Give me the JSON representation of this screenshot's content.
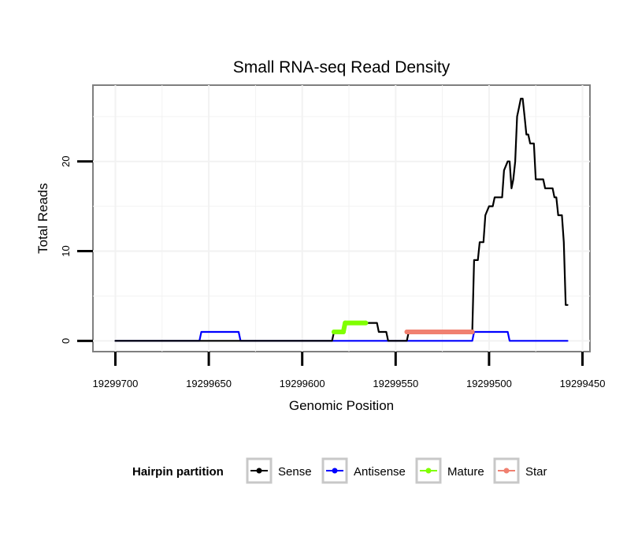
{
  "chart_data": {
    "type": "line",
    "title": "Small RNA-seq Read Density",
    "xlabel": "Genomic Position",
    "ylabel": "Total Reads",
    "xlim": [
      19299712,
      19299446
    ],
    "ylim": [
      -1.2,
      28.5
    ],
    "x_reversed": true,
    "x_ticks": [
      19299700,
      19299650,
      19299600,
      19299550,
      19299500,
      19299450
    ],
    "x_tick_labels": [
      "19299700",
      "19299650",
      "19299600",
      "19299550",
      "19299500",
      "19299450"
    ],
    "y_ticks": [
      0,
      10,
      20
    ],
    "y_tick_labels": [
      "0",
      "10",
      "20"
    ],
    "grid": true,
    "legend": {
      "title": "Hairpin partition",
      "position": "bottom",
      "entries": [
        "Sense",
        "Antisense",
        "Mature",
        "Star"
      ]
    },
    "series": [
      {
        "name": "Sense",
        "color": "#000000",
        "x": [
          19299700,
          19299584,
          19299583,
          19299578,
          19299577,
          19299566,
          19299565,
          19299560,
          19299559,
          19299555,
          19299554,
          19299544,
          19299543,
          19299509,
          19299508,
          19299506,
          19299505,
          19299503,
          19299502,
          19299500,
          19299499,
          19299498,
          19299497,
          19299493,
          19299492,
          19299490,
          19299489,
          19299488,
          19299487,
          19299486,
          19299485,
          19299484,
          19299483,
          19299482,
          19299481,
          19299480,
          19299479,
          19299478,
          19299477,
          19299476,
          19299475,
          19299471,
          19299470,
          19299466,
          19299465,
          19299464,
          19299463,
          19299462,
          19299461,
          19299460,
          19299459,
          19299458
        ],
        "y": [
          0,
          0,
          1,
          1,
          2,
          2,
          2,
          2,
          1,
          1,
          0,
          0,
          1,
          1,
          9,
          9,
          11,
          11,
          14,
          15,
          15,
          15,
          16,
          16,
          19,
          20,
          20,
          17,
          18,
          20,
          25,
          26,
          27,
          27,
          25,
          23,
          23,
          22,
          22,
          22,
          18,
          18,
          17,
          17,
          16,
          16,
          14,
          14,
          14,
          11,
          4,
          4
        ]
      },
      {
        "name": "Antisense",
        "color": "#0000ff",
        "x": [
          19299700,
          19299655,
          19299654,
          19299634,
          19299633,
          19299509,
          19299508,
          19299490,
          19299489,
          19299458
        ],
        "y": [
          0,
          0,
          1,
          1,
          0,
          0,
          1,
          1,
          0,
          0
        ]
      },
      {
        "name": "Mature",
        "color": "#80ff00",
        "x": [
          19299583,
          19299578,
          19299577,
          19299566
        ],
        "y": [
          1,
          1,
          2,
          2
        ]
      },
      {
        "name": "Star",
        "color": "#f08070",
        "x": [
          19299544,
          19299509
        ],
        "y": [
          1,
          1
        ]
      }
    ]
  }
}
